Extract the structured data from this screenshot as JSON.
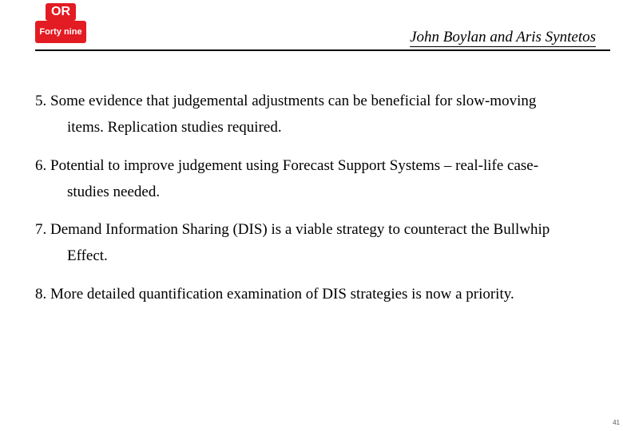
{
  "logo": {
    "top_text": "OR",
    "bottom_text": "Forty nine",
    "bg_color": "#e31b23",
    "fg_color": "#ffffff"
  },
  "header": {
    "authors": "John Boylan and Aris Syntetos"
  },
  "items": [
    {
      "number": "5.",
      "line1": "Some evidence that judgemental adjustments can be beneficial for slow-moving",
      "line2": "items. Replication studies required."
    },
    {
      "number": "6.",
      "line1": "Potential to improve judgement using Forecast Support Systems – real-life case-",
      "line2": "studies needed."
    },
    {
      "number": "7.",
      "line1": "Demand Information Sharing (DIS) is a viable strategy to counteract the Bullwhip",
      "line2": "Effect."
    },
    {
      "number": "8.",
      "line1": "More detailed quantification examination of DIS strategies is now a priority.",
      "line2": ""
    }
  ],
  "page_number": "41",
  "style": {
    "background_color": "#ffffff",
    "text_color": "#000000",
    "divider_color": "#000000",
    "body_font_size_pt": 14,
    "author_font_size_pt": 14
  }
}
